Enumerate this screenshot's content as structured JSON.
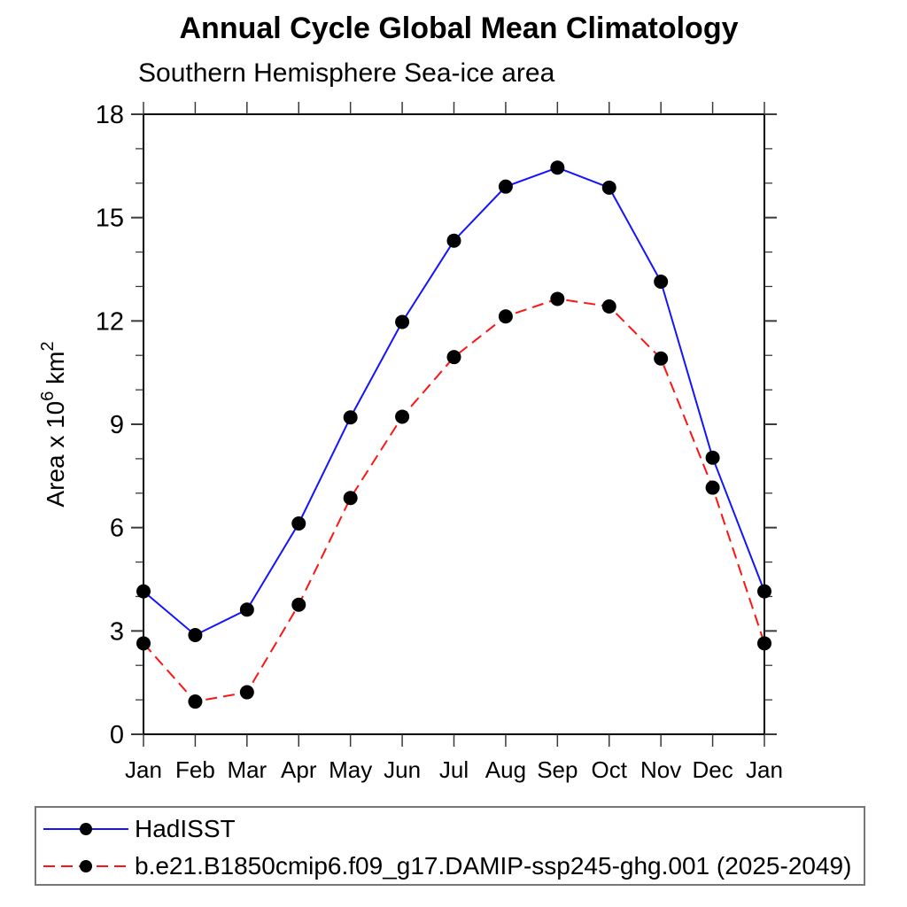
{
  "chart_data": {
    "type": "line",
    "title": "Annual Cycle Global Mean Climatology",
    "subtitle": "Southern Hemisphere Sea-ice area",
    "x_categories": [
      "Jan",
      "Feb",
      "Mar",
      "Apr",
      "May",
      "Jun",
      "Jul",
      "Aug",
      "Sep",
      "Oct",
      "Nov",
      "Dec",
      "Jan"
    ],
    "ylim": [
      0,
      18
    ],
    "yticks_major": [
      0,
      3,
      6,
      9,
      12,
      15,
      18
    ],
    "ytick_minor_interval": 1,
    "grid": false,
    "ylabel_text": "Area x 10⁶ km²",
    "ylabel_parts": {
      "prefix": "Area x 10",
      "sup1": "6",
      "middle": " km",
      "sup2": "2"
    },
    "legend_position": "bottom-left",
    "colors": {
      "axis": "#000000",
      "tick": "#3a3a3a",
      "text": "#000000",
      "marker": "#000000",
      "hadisst_line": "#1414ff",
      "model_line": "#ff1414",
      "legend_border": "#777777"
    },
    "series": [
      {
        "name": "HadISST",
        "color": "#1414ff",
        "line_style": "solid",
        "marker": "filled-circle",
        "marker_color": "#000000",
        "values": [
          4.15,
          2.88,
          3.62,
          6.12,
          9.2,
          11.97,
          14.33,
          15.9,
          16.45,
          15.87,
          13.14,
          8.03,
          4.15
        ]
      },
      {
        "name": "b.e21.B1850cmip6.f09_g17.DAMIP-ssp245-ghg.001 (2025-2049)",
        "color": "#ff1414",
        "line_style": "dashed",
        "marker": "filled-circle",
        "marker_color": "#000000",
        "values": [
          2.64,
          0.95,
          1.22,
          3.76,
          6.86,
          9.22,
          10.95,
          12.13,
          12.64,
          12.42,
          10.91,
          7.16,
          2.64
        ]
      }
    ]
  }
}
